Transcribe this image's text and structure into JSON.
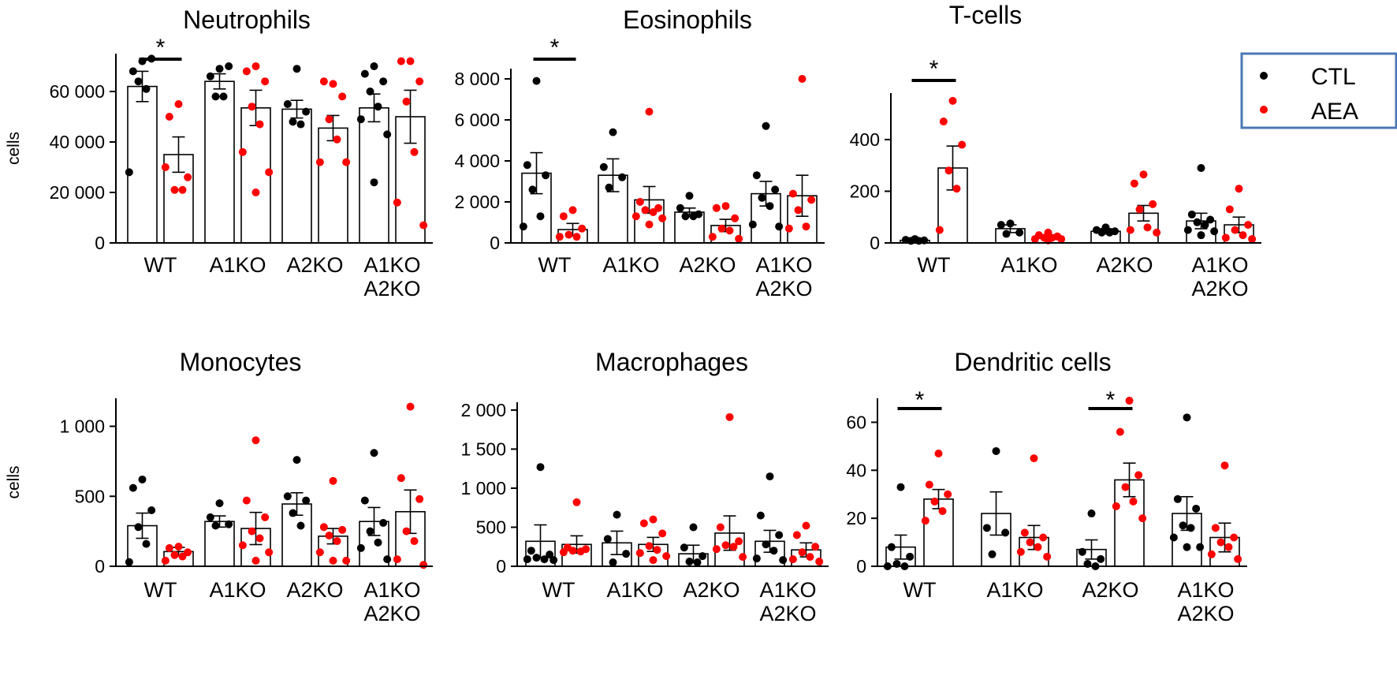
{
  "colors": {
    "ctl": "#000000",
    "aea": "#ff0000",
    "legend_border": "#4a78b5"
  },
  "legend": {
    "ctl_label": "CTL",
    "aea_label": "AEA"
  },
  "chart_data": [
    {
      "type": "bar",
      "title": "Neutrophils",
      "ylabel": "cells",
      "categories": [
        "WT",
        "A1KO",
        "A2KO",
        "A1KO\nA2KO"
      ],
      "ylim": [
        0,
        75000
      ],
      "yticks": [
        0,
        20000,
        40000,
        60000
      ],
      "ytick_labels": [
        "0",
        "20 000",
        "40 000",
        "60 000"
      ],
      "series": [
        {
          "name": "CTL",
          "values": [
            62000,
            64000,
            53000,
            53500
          ],
          "sem": [
            6000,
            3000,
            3500,
            5500
          ],
          "points": [
            [
              72000,
              68000,
              73000,
              64000,
              61000,
              28000
            ],
            [
              69000,
              66000,
              70000,
              58000,
              58000
            ],
            [
              69000,
              55000,
              52000,
              48000,
              47000
            ],
            [
              70000,
              67000,
              64000,
              60000,
              54000,
              49000,
              43000,
              24000
            ]
          ]
        },
        {
          "name": "AEA",
          "values": [
            35000,
            53500,
            45500,
            50000
          ],
          "sem": [
            7000,
            7000,
            5000,
            10500
          ],
          "points": [
            [
              55000,
              50000,
              26000,
              21000,
              21000,
              30000
            ],
            [
              70000,
              68000,
              64000,
              54000,
              47000,
              36000,
              28000,
              20000
            ],
            [
              63000,
              64000,
              58000,
              49000,
              41000,
              32000,
              32000
            ],
            [
              72000,
              72000,
              64000,
              56000,
              36000,
              16000,
              7000
            ]
          ]
        }
      ],
      "significance": [
        {
          "category": "WT",
          "label": "*"
        }
      ]
    },
    {
      "type": "bar",
      "title": "Eosinophils",
      "ylabel": "",
      "categories": [
        "WT",
        "A1KO",
        "A2KO",
        "A1KO\nA2KO"
      ],
      "ylim": [
        0,
        8500
      ],
      "yticks": [
        0,
        2000,
        4000,
        6000,
        8000
      ],
      "ytick_labels": [
        "0",
        "2 000",
        "4 000",
        "6 000",
        "8 000"
      ],
      "series": [
        {
          "name": "CTL",
          "values": [
            3400,
            3300,
            1500,
            2400
          ],
          "sem": [
            1000,
            800,
            200,
            600
          ],
          "points": [
            [
              7900,
              3800,
              3300,
              2600,
              1300,
              800
            ],
            [
              5400,
              3700,
              3200,
              2700
            ],
            [
              2300,
              1700,
              1400,
              1300,
              1300
            ],
            [
              5700,
              3300,
              2600,
              2200,
              1800,
              900,
              800
            ]
          ]
        },
        {
          "name": "AEA",
          "values": [
            650,
            2100,
            850,
            2300
          ],
          "sem": [
            300,
            650,
            300,
            1000
          ],
          "points": [
            [
              1600,
              1300,
              700,
              400,
              300,
              300
            ],
            [
              6400,
              2000,
              1700,
              1600,
              1500,
              1300,
              1200,
              900
            ],
            [
              1800,
              1700,
              1200,
              700,
              600,
              300,
              200
            ],
            [
              8000,
              2400,
              2100,
              1600,
              800,
              700
            ]
          ]
        }
      ],
      "significance": [
        {
          "category": "WT",
          "label": "*"
        }
      ]
    },
    {
      "type": "bar",
      "title": "T-cells",
      "ylabel": "",
      "categories": [
        "WT",
        "A1KO",
        "A2KO",
        "A1KO\nA2KO"
      ],
      "ylim": [
        0,
        580
      ],
      "yticks": [
        0,
        200,
        400
      ],
      "ytick_labels": [
        "0",
        "200",
        "400"
      ],
      "series": [
        {
          "name": "CTL",
          "values": [
            10,
            55,
            45,
            85
          ],
          "sem": [
            3,
            15,
            10,
            30
          ],
          "points": [
            [
              15,
              12,
              10,
              8,
              8
            ],
            [
              75,
              70,
              40,
              35
            ],
            [
              60,
              50,
              45,
              40,
              40
            ],
            [
              290,
              110,
              90,
              80,
              70,
              50,
              45,
              30
            ]
          ]
        },
        {
          "name": "AEA",
          "values": [
            290,
            25,
            115,
            70
          ],
          "sem": [
            85,
            5,
            30,
            30
          ],
          "points": [
            [
              550,
              470,
              380,
              280,
              210,
              50
            ],
            [
              40,
              30,
              25,
              20,
              20,
              15,
              15,
              10
            ],
            [
              265,
              230,
              150,
              130,
              60,
              50,
              40
            ],
            [
              210,
              130,
              70,
              50,
              30,
              20,
              15
            ]
          ]
        }
      ],
      "significance": [
        {
          "category": "WT",
          "label": "*"
        }
      ]
    },
    {
      "type": "bar",
      "title": "Monocytes",
      "ylabel": "cells",
      "categories": [
        "WT",
        "A1KO",
        "A2KO",
        "A1KO\nA2KO"
      ],
      "ylim": [
        0,
        1200
      ],
      "yticks": [
        0,
        500,
        1000
      ],
      "ytick_labels": [
        "0",
        "500",
        "1 000"
      ],
      "series": [
        {
          "name": "CTL",
          "values": [
            290,
            320,
            445,
            320
          ],
          "sem": [
            90,
            40,
            80,
            100
          ],
          "points": [
            [
              620,
              560,
              400,
              280,
              160,
              30
            ],
            [
              450,
              350,
              300,
              290
            ],
            [
              760,
              500,
              470,
              380,
              290
            ],
            [
              810,
              470,
              310,
              250,
              170,
              130,
              50
            ]
          ]
        },
        {
          "name": "AEA",
          "values": [
            105,
            270,
            215,
            390
          ],
          "sem": [
            30,
            115,
            55,
            155
          ],
          "points": [
            [
              140,
              130,
              100,
              80,
              70,
              40
            ],
            [
              900,
              470,
              350,
              250,
              200,
              150,
              100,
              40
            ],
            [
              610,
              280,
              260,
              220,
              180,
              100,
              40,
              40
            ],
            [
              1140,
              630,
              480,
              250,
              180,
              50,
              10
            ]
          ]
        }
      ],
      "significance": []
    },
    {
      "type": "bar",
      "title": "Macrophages",
      "ylabel": "",
      "categories": [
        "WT",
        "A1KO",
        "A2KO",
        "A1KO\nA2KO"
      ],
      "ylim": [
        0,
        2100
      ],
      "yticks": [
        0,
        500,
        1000,
        1500,
        2000
      ],
      "ytick_labels": [
        "0",
        "500",
        "1 000",
        "1 500",
        "2 000"
      ],
      "series": [
        {
          "name": "CTL",
          "values": [
            320,
            300,
            160,
            320
          ],
          "sem": [
            210,
            150,
            110,
            140
          ],
          "points": [
            [
              1270,
              200,
              150,
              110,
              90,
              90,
              80
            ],
            [
              660,
              350,
              160,
              50
            ],
            [
              500,
              240,
              130,
              60,
              50
            ],
            [
              1150,
              650,
              400,
              280,
              200,
              100,
              80
            ]
          ]
        },
        {
          "name": "AEA",
          "values": [
            280,
            280,
            425,
            210
          ],
          "sem": [
            110,
            90,
            220,
            90
          ],
          "points": [
            [
              820,
              240,
              220,
              200,
              190,
              180
            ],
            [
              600,
              550,
              420,
              260,
              210,
              170,
              130,
              80
            ],
            [
              1910,
              500,
              320,
              270,
              250,
              220,
              120
            ],
            [
              520,
              400,
              250,
              180,
              120,
              90,
              60
            ]
          ]
        }
      ],
      "significance": []
    },
    {
      "type": "bar",
      "title": "Dendritic cells",
      "ylabel": "",
      "categories": [
        "WT",
        "A1KO",
        "A2KO",
        "A1KO\nA2KO"
      ],
      "ylim": [
        0,
        70
      ],
      "yticks": [
        0,
        20,
        40,
        60
      ],
      "ytick_labels": [
        "0",
        "20",
        "40",
        "60"
      ],
      "series": [
        {
          "name": "CTL",
          "values": [
            8,
            22,
            7,
            22
          ],
          "sem": [
            5,
            9,
            4,
            7
          ],
          "points": [
            [
              33,
              8,
              4,
              1,
              0,
              0
            ],
            [
              48,
              16,
              14,
              5
            ],
            [
              22,
              6,
              3,
              1,
              0
            ],
            [
              62,
              28,
              24,
              17,
              16,
              12,
              8,
              8
            ]
          ]
        },
        {
          "name": "AEA",
          "values": [
            28,
            12,
            36,
            12
          ],
          "sem": [
            4,
            5,
            7,
            6
          ],
          "points": [
            [
              47,
              34,
              30,
              27,
              23,
              19
            ],
            [
              45,
              14,
              12,
              10,
              8,
              6,
              4
            ],
            [
              69,
              56,
              38,
              33,
              27,
              25,
              20
            ],
            [
              42,
              16,
              12,
              10,
              8,
              5,
              3
            ]
          ]
        }
      ],
      "significance": [
        {
          "category": "WT",
          "label": "*"
        },
        {
          "category": "A2KO",
          "label": "*"
        }
      ]
    }
  ]
}
